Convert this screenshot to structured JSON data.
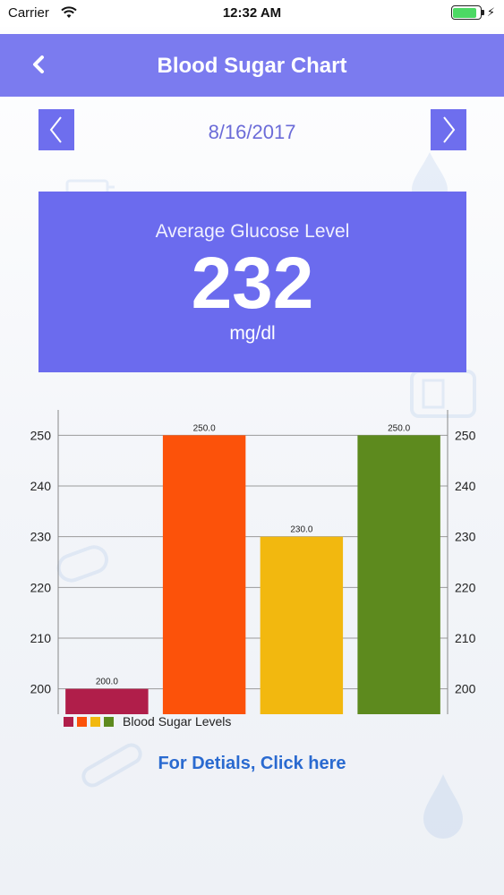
{
  "status_bar": {
    "carrier": "Carrier",
    "time": "12:32 AM",
    "battery_level": 0.9,
    "battery_color": "#4cd964",
    "icons": [
      "wifi-icon",
      "battery-icon",
      "charging-bolt-icon"
    ]
  },
  "header": {
    "title": "Blood Sugar Chart",
    "back_icon": "chevron-left-icon",
    "background_color": "#7b7bef"
  },
  "date_nav": {
    "date": "8/16/2017",
    "prev_icon": "chevron-left-icon",
    "next_icon": "chevron-right-icon"
  },
  "average_card": {
    "label": "Average Glucose Level",
    "value": "232",
    "unit": "mg/dl",
    "background_color": "#6b6bee"
  },
  "chart_data": {
    "type": "bar",
    "series": [
      {
        "name": "Blood Sugar Levels",
        "values": [
          200.0,
          250.0,
          230.0,
          250.0
        ],
        "value_labels": [
          "200.0",
          "250.0",
          "230.0",
          "250.0"
        ],
        "colors": [
          "#b01e4a",
          "#fc520a",
          "#f2b80f",
          "#5d8a1e"
        ]
      }
    ],
    "ylim": [
      195,
      255
    ],
    "yticks": [
      200,
      210,
      220,
      230,
      240,
      250
    ],
    "ytick_labels": [
      "200",
      "210",
      "220",
      "230",
      "240",
      "250"
    ],
    "grid": true,
    "legend": "bottom-left",
    "axes": "left-and-right"
  },
  "footer": {
    "details_link": "For Detials, Click here"
  }
}
